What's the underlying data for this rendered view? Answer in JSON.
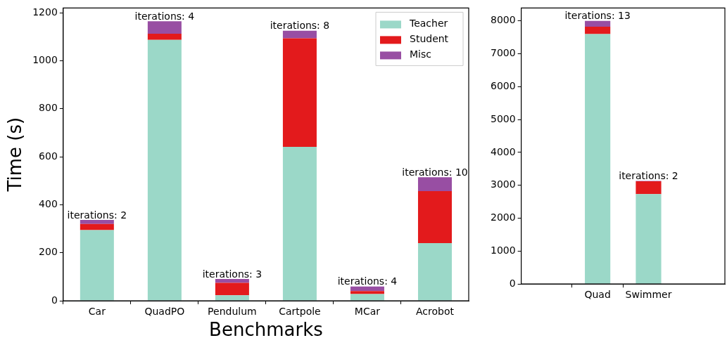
{
  "chart_data": [
    {
      "type": "bar",
      "stacked": true,
      "ylabel": "Time (s)",
      "xlabel": "Benchmarks",
      "categories": [
        "Car",
        "QuadPO",
        "Pendulum",
        "Cartpole",
        "MCar",
        "Acrobot"
      ],
      "series": [
        {
          "name": "Teacher",
          "color": "#9bd8c8",
          "values": [
            294,
            1087,
            23,
            641,
            28,
            240
          ]
        },
        {
          "name": "Student",
          "color": "#e31a1c",
          "values": [
            26,
            26,
            52,
            453,
            12,
            217
          ]
        },
        {
          "name": "Misc",
          "color": "#984ea3",
          "values": [
            17,
            52,
            16,
            31,
            19,
            58
          ]
        }
      ],
      "ylim": [
        0,
        1220
      ],
      "yticks": [
        0,
        200,
        400,
        600,
        800,
        1000,
        1200
      ],
      "grid": false,
      "legend": "top right",
      "annotations": [
        {
          "text": "iterations: 2",
          "x": "Car",
          "y": 337
        },
        {
          "text": "iterations: 4",
          "x": "QuadPO",
          "y": 1165
        },
        {
          "text": "iterations: 3",
          "x": "Pendulum",
          "y": 91
        },
        {
          "text": "iterations: 8",
          "x": "Cartpole",
          "y": 1125
        },
        {
          "text": "iterations: 4",
          "x": "MCar",
          "y": 59
        },
        {
          "text": "iterations: 10",
          "x": "Acrobot",
          "y": 515
        }
      ]
    },
    {
      "type": "bar",
      "stacked": true,
      "categories": [
        null,
        "Quad",
        "Swimmer",
        null
      ],
      "series": [
        {
          "color": "#9bd8c8",
          "values": [
            null,
            7600,
            2735,
            null
          ]
        },
        {
          "color": "#e31a1c",
          "values": [
            null,
            220,
            390,
            null
          ]
        },
        {
          "color": "#984ea3",
          "values": [
            null,
            180,
            10,
            null
          ]
        }
      ],
      "ylim": [
        0,
        8390
      ],
      "yticks": [
        0,
        1000,
        2000,
        3000,
        4000,
        5000,
        6000,
        7000,
        8000
      ],
      "grid": false,
      "legend": false,
      "annotations": [
        {
          "text": "iterations: 13",
          "x": "Quad",
          "y": 8000
        },
        {
          "text": "iterations: 2",
          "x": "Swimmer",
          "y": 3135
        }
      ]
    }
  ]
}
